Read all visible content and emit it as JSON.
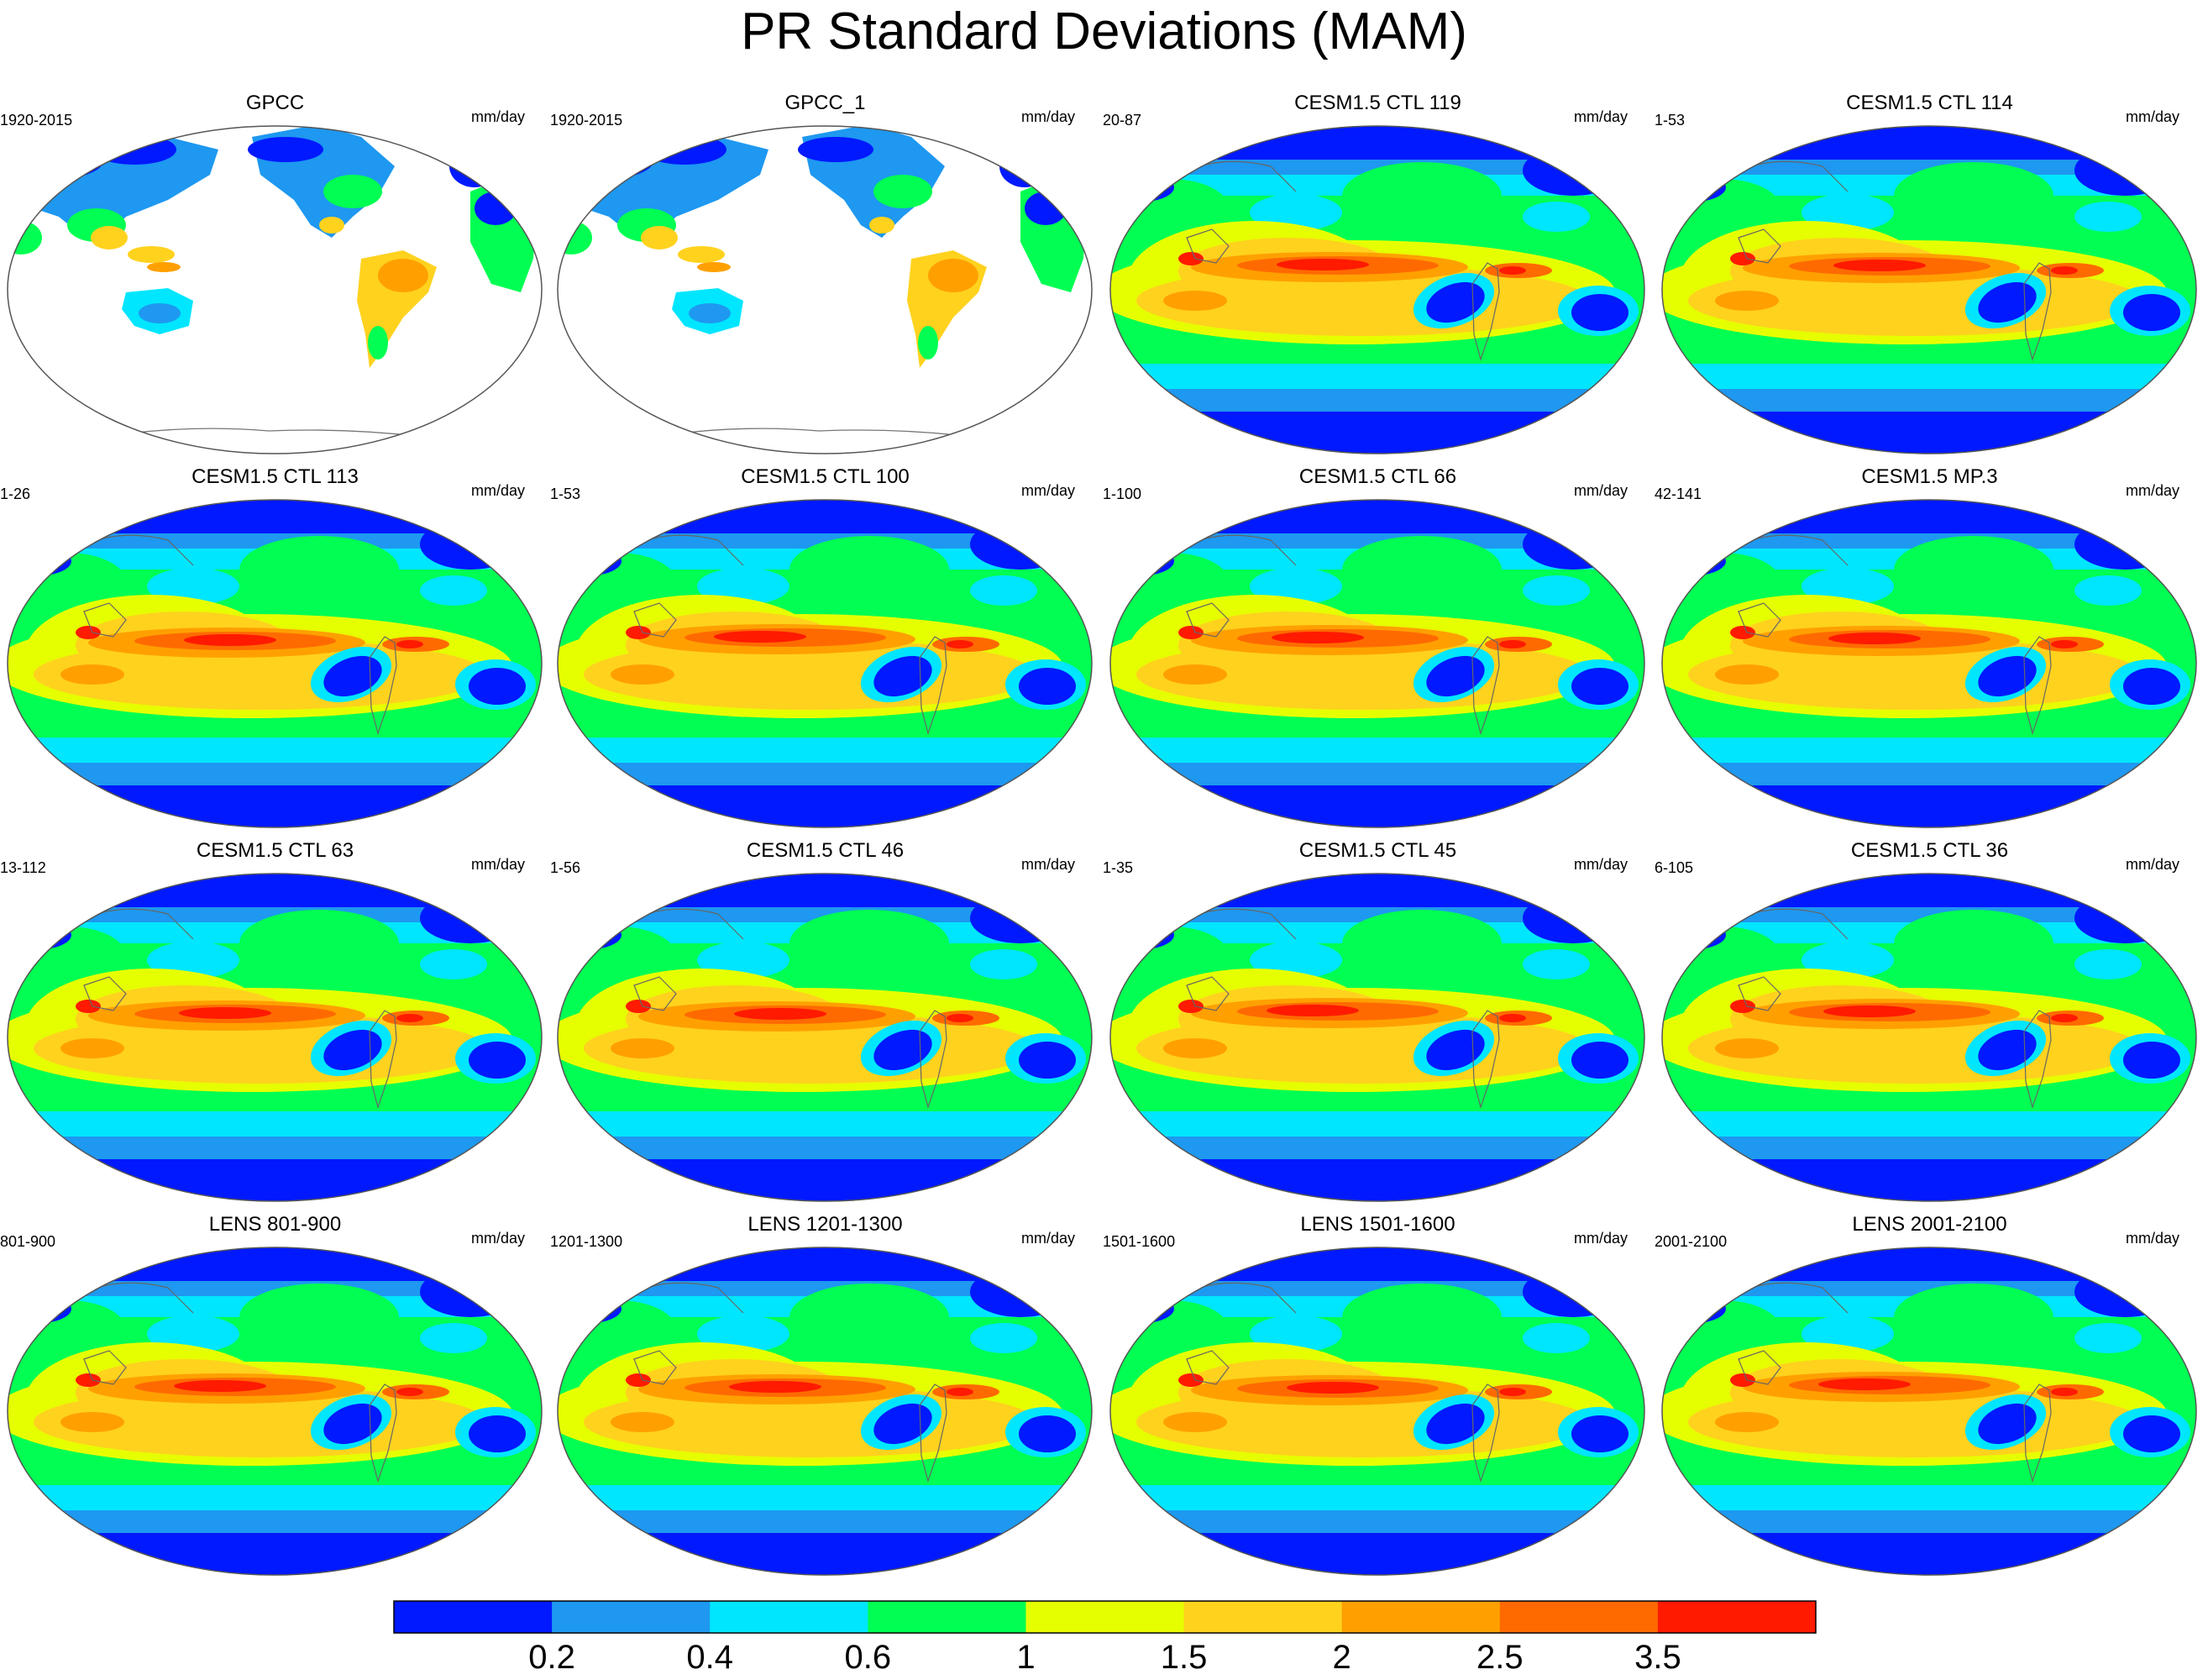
{
  "title": "PR Standard Deviations (MAM)",
  "units_label": "mm/day",
  "colorbar": {
    "colors": [
      "#0019ff",
      "#1e98f0",
      "#00e6ff",
      "#00ff52",
      "#e6ff00",
      "#ffd21e",
      "#ffa000",
      "#ff6a00",
      "#ff1a00"
    ],
    "tick_labels": [
      "0.2",
      "0.4",
      "0.6",
      "1",
      "1.5",
      "2",
      "2.5",
      "3.5"
    ]
  },
  "panels": [
    {
      "title": "GPCC",
      "years": "1920-2015",
      "type": "obs"
    },
    {
      "title": "GPCC_1",
      "years": "1920-2015",
      "type": "obs"
    },
    {
      "title": "CESM1.5 CTL 119",
      "years": "20-87",
      "type": "model"
    },
    {
      "title": "CESM1.5 CTL 114",
      "years": "1-53",
      "type": "model"
    },
    {
      "title": "CESM1.5 CTL 113",
      "years": "1-26",
      "type": "model"
    },
    {
      "title": "CESM1.5 CTL 100",
      "years": "1-53",
      "type": "model"
    },
    {
      "title": "CESM1.5 CTL 66",
      "years": "1-100",
      "type": "model"
    },
    {
      "title": "CESM1.5 MP.3",
      "years": "42-141",
      "type": "model"
    },
    {
      "title": "CESM1.5 CTL 63",
      "years": "13-112",
      "type": "model"
    },
    {
      "title": "CESM1.5 CTL 46",
      "years": "1-56",
      "type": "model"
    },
    {
      "title": "CESM1.5 CTL 45",
      "years": "1-35",
      "type": "model"
    },
    {
      "title": "CESM1.5 CTL 36",
      "years": "6-105",
      "type": "model"
    },
    {
      "title": "LENS 801-900",
      "years": "801-900",
      "type": "model"
    },
    {
      "title": "LENS 1201-1300",
      "years": "1201-1300",
      "type": "model"
    },
    {
      "title": "LENS 1501-1600",
      "years": "1501-1600",
      "type": "model"
    },
    {
      "title": "LENS 2001-2100",
      "years": "2001-2100",
      "type": "model"
    }
  ]
}
